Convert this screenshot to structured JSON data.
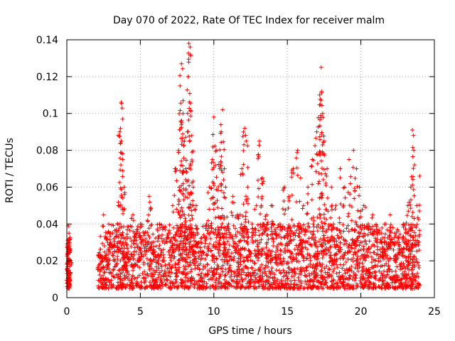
{
  "chart_data": {
    "type": "scatter",
    "title": "Day 070 of 2022, Rate Of TEC Index for receiver malm",
    "xlabel": "GPS time / hours",
    "ylabel": "ROTI / TECUs",
    "xlim": [
      0,
      25
    ],
    "ylim": [
      0,
      0.14
    ],
    "xticks": [
      0,
      5,
      10,
      15,
      20,
      25
    ],
    "xtick_labels": [
      "0",
      "5",
      "10",
      "15",
      "20",
      "25"
    ],
    "yticks": [
      0,
      0.02,
      0.04,
      0.06,
      0.08,
      0.1,
      0.12,
      0.14
    ],
    "ytick_labels": [
      "0",
      "0.02",
      "0.04",
      "0.06",
      "0.08",
      "0.1",
      "0.12",
      "0.14"
    ],
    "grid": true,
    "marker": "+",
    "color": "#ff0000",
    "series": [
      {
        "name": "ROTI",
        "x": [
          0.05,
          0.1,
          0.15,
          0.2,
          0.08,
          0.12,
          0.18,
          0.1,
          0.05,
          0.15,
          2.3,
          2.5,
          2.8,
          3.0,
          3.2,
          3.5,
          3.6,
          3.7,
          3.8,
          3.9,
          4.0,
          4.2,
          4.5,
          4.8,
          5.0,
          5.3,
          5.6,
          5.8,
          6.0,
          6.3,
          6.6,
          6.9,
          7.2,
          7.4,
          7.6,
          7.7,
          7.8,
          7.9,
          8.0,
          8.1,
          8.2,
          8.3,
          8.4,
          8.5,
          8.6,
          8.8,
          9.0,
          9.2,
          9.5,
          9.7,
          9.9,
          10.0,
          10.2,
          10.4,
          10.5,
          10.6,
          10.8,
          11.0,
          11.3,
          11.6,
          11.9,
          12.1,
          12.2,
          12.3,
          12.6,
          12.9,
          13.1,
          13.3,
          13.6,
          13.9,
          14.2,
          14.5,
          14.8,
          15.1,
          15.4,
          15.7,
          15.9,
          16.1,
          16.4,
          16.7,
          17.0,
          17.2,
          17.3,
          17.4,
          17.5,
          17.7,
          18.0,
          18.3,
          18.6,
          18.9,
          19.2,
          19.5,
          19.7,
          19.9,
          20.2,
          20.5,
          20.8,
          21.1,
          21.4,
          21.7,
          22.0,
          22.3,
          22.6,
          22.9,
          23.2,
          23.4,
          23.5,
          23.6,
          23.8,
          24.0
        ],
        "y": [
          0.008,
          0.025,
          0.035,
          0.012,
          0.018,
          0.03,
          0.02,
          0.039,
          0.006,
          0.015,
          0.022,
          0.045,
          0.018,
          0.035,
          0.028,
          0.05,
          0.09,
          0.106,
          0.075,
          0.06,
          0.03,
          0.025,
          0.045,
          0.02,
          0.04,
          0.035,
          0.055,
          0.03,
          0.025,
          0.04,
          0.02,
          0.035,
          0.05,
          0.07,
          0.08,
          0.115,
          0.127,
          0.1,
          0.085,
          0.07,
          0.09,
          0.138,
          0.132,
          0.088,
          0.06,
          0.05,
          0.03,
          0.025,
          0.04,
          0.06,
          0.075,
          0.098,
          0.08,
          0.07,
          0.09,
          0.102,
          0.06,
          0.04,
          0.055,
          0.045,
          0.07,
          0.092,
          0.085,
          0.06,
          0.04,
          0.05,
          0.085,
          0.065,
          0.045,
          0.05,
          0.035,
          0.04,
          0.06,
          0.055,
          0.07,
          0.08,
          0.065,
          0.05,
          0.06,
          0.075,
          0.09,
          0.11,
          0.125,
          0.1,
          0.085,
          0.07,
          0.06,
          0.05,
          0.07,
          0.06,
          0.075,
          0.08,
          0.07,
          0.06,
          0.05,
          0.04,
          0.045,
          0.035,
          0.03,
          0.04,
          0.045,
          0.035,
          0.03,
          0.04,
          0.05,
          0.06,
          0.091,
          0.08,
          0.05,
          0.066
        ]
      }
    ],
    "dense_ranges": [
      {
        "x_start": 0.0,
        "x_end": 0.25,
        "y_low": 0.005,
        "y_high": 0.032,
        "n": 90
      },
      {
        "x_start": 2.1,
        "x_end": 24.0,
        "y_low": 0.005,
        "y_high": 0.04,
        "n": 2400
      }
    ]
  }
}
